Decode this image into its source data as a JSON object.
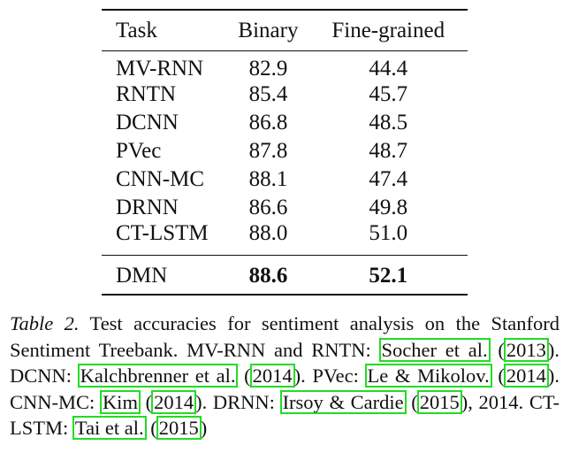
{
  "table": {
    "headers": [
      "Task",
      "Binary",
      "Fine-grained"
    ],
    "rows": [
      [
        "MV-RNN",
        "82.9",
        "44.4"
      ],
      [
        "RNTN",
        "85.4",
        "45.7"
      ],
      [
        "DCNN",
        "86.8",
        "48.5"
      ],
      [
        "PVec",
        "87.8",
        "48.7"
      ],
      [
        "CNN-MC",
        "88.1",
        "47.4"
      ],
      [
        "DRNN",
        "86.6",
        "49.8"
      ],
      [
        "CT-LSTM",
        "88.0",
        "51.0"
      ]
    ],
    "final_row": [
      "DMN",
      "88.6",
      "52.1"
    ]
  },
  "caption": {
    "label": "Table 2.",
    "text1": " Test accuracies for sentiment analysis on the Stanford Sentiment Treebank. MV-RNN and RNTN: ",
    "cite1_authors": "Socher et al.",
    "cite1_year": "2013",
    "text2": "). DCNN: ",
    "cite2_authors": "Kalchbrenner et al.",
    "cite2_year": "2014",
    "text3": "). PVec: ",
    "cite3_authors": "Le & Mikolov.",
    "cite3_year": "2014",
    "text4": "). CNN-MC: ",
    "cite4_authors": "Kim",
    "cite4_year": "2014",
    "text5": ").  DRNN: ",
    "cite5_authors": "Irsoy & Cardie",
    "cite5_year": "2015",
    "text6": "), 2014. CT-LSTM: ",
    "cite6_authors": "Tai et al.",
    "cite6_year": "2015",
    "text7": ")"
  },
  "colors": {
    "text": "#111111",
    "citation_box": "#22dd22"
  }
}
